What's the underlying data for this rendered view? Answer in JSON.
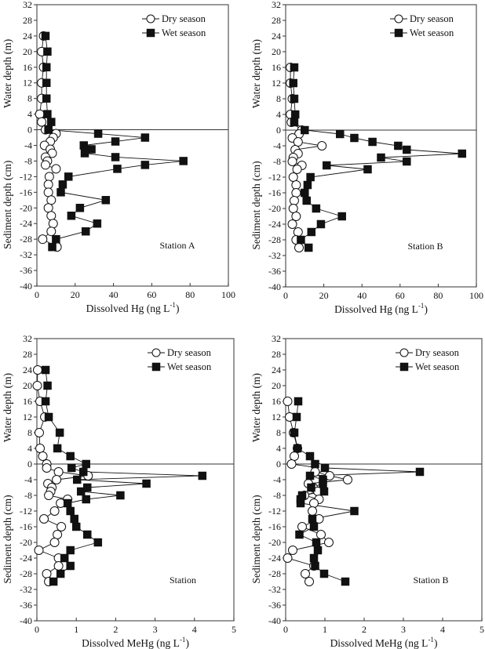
{
  "chart_data": [
    {
      "type": "line",
      "panel": "top-left",
      "title": "",
      "annotation": "Station A",
      "xlabel": "Dissolved Hg (ng L",
      "xlabel_sup": "-1",
      "xlabel_close": ")",
      "ylabel_upper": "Water depth (m)",
      "ylabel_lower": "Sediment depth (cm)",
      "xlim": [
        0,
        100
      ],
      "ylim": [
        -40,
        32
      ],
      "xticks": [
        0,
        20,
        40,
        60,
        80,
        100
      ],
      "yticks": [
        32,
        28,
        24,
        20,
        16,
        12,
        8,
        4,
        0,
        -4,
        -8,
        -12,
        -16,
        -20,
        -24,
        -28,
        -32,
        -36,
        -40
      ],
      "legend": {
        "position": "top-right",
        "entries": [
          "Dry season",
          "Wet season"
        ]
      },
      "series": [
        {
          "name": "Dry season",
          "marker": "open-circle",
          "points": [
            [
              3.5,
              24
            ],
            [
              2.5,
              20
            ],
            [
              3.5,
              16
            ],
            [
              2.5,
              12
            ],
            [
              2.5,
              8
            ],
            [
              1.5,
              4
            ],
            [
              2.5,
              2
            ],
            [
              4.5,
              0
            ],
            [
              10,
              -1
            ],
            [
              8.5,
              -2
            ],
            [
              7,
              -3
            ],
            [
              4,
              -4
            ],
            [
              7,
              -5
            ],
            [
              8,
              -6
            ],
            [
              4.5,
              -7
            ],
            [
              5.5,
              -8
            ],
            [
              4.5,
              -9
            ],
            [
              10,
              -10
            ],
            [
              6.5,
              -12
            ],
            [
              6,
              -14
            ],
            [
              6,
              -16
            ],
            [
              7.5,
              -18
            ],
            [
              6,
              -20
            ],
            [
              7.5,
              -22
            ],
            [
              8.5,
              -24
            ],
            [
              7.5,
              -26
            ],
            [
              3,
              -28
            ],
            [
              10.5,
              -30
            ]
          ]
        },
        {
          "name": "Wet season",
          "marker": "filled-square",
          "points": [
            [
              4.5,
              24
            ],
            [
              5.5,
              20
            ],
            [
              5,
              16
            ],
            [
              5,
              12
            ],
            [
              5,
              8
            ],
            [
              5.5,
              4
            ],
            [
              7.5,
              2
            ],
            [
              6,
              0
            ],
            [
              32,
              -1
            ],
            [
              56.5,
              -2
            ],
            [
              41,
              -3
            ],
            [
              24.5,
              -4
            ],
            [
              28.5,
              -5
            ],
            [
              25,
              -6
            ],
            [
              41,
              -7
            ],
            [
              76.5,
              -8
            ],
            [
              56.5,
              -9
            ],
            [
              42,
              -10
            ],
            [
              16.5,
              -12
            ],
            [
              13.5,
              -14
            ],
            [
              12.5,
              -16
            ],
            [
              36,
              -18
            ],
            [
              22.5,
              -20
            ],
            [
              18,
              -22
            ],
            [
              31.5,
              -24
            ],
            [
              25.5,
              -26
            ],
            [
              10,
              -28
            ],
            [
              8,
              -30
            ]
          ]
        }
      ]
    },
    {
      "type": "line",
      "panel": "top-right",
      "title": "",
      "annotation": "Station B",
      "xlabel": "Dissolved Hg (ng L",
      "xlabel_sup": "-1",
      "xlabel_close": ")",
      "ylabel_upper": "Water depth (m)",
      "ylabel_lower": "Sediment depth (cm)",
      "xlim": [
        0,
        100
      ],
      "ylim": [
        -40,
        32
      ],
      "xticks": [
        0,
        20,
        40,
        60,
        80,
        100
      ],
      "yticks": [
        32,
        28,
        24,
        20,
        16,
        12,
        8,
        4,
        0,
        -4,
        -8,
        -12,
        -16,
        -20,
        -24,
        -28,
        -32,
        -36,
        -40
      ],
      "legend": {
        "position": "top-right",
        "entries": [
          "Dry season",
          "Wet season"
        ]
      },
      "series": [
        {
          "name": "Dry season",
          "marker": "open-circle",
          "points": [
            [
              2.5,
              16
            ],
            [
              2.5,
              12
            ],
            [
              3.5,
              8
            ],
            [
              2.5,
              4
            ],
            [
              3,
              2
            ],
            [
              8.5,
              0
            ],
            [
              7,
              -1
            ],
            [
              3.5,
              -2
            ],
            [
              6.5,
              -3
            ],
            [
              19,
              -4
            ],
            [
              5,
              -5
            ],
            [
              6.5,
              -6
            ],
            [
              4,
              -7
            ],
            [
              3.5,
              -8
            ],
            [
              8.5,
              -9
            ],
            [
              6,
              -10
            ],
            [
              4,
              -12
            ],
            [
              5.5,
              -14
            ],
            [
              5.5,
              -16
            ],
            [
              4.5,
              -18
            ],
            [
              4,
              -20
            ],
            [
              5.5,
              -22
            ],
            [
              3.5,
              -24
            ],
            [
              6.5,
              -26
            ],
            [
              5.5,
              -28
            ],
            [
              7,
              -30
            ]
          ]
        },
        {
          "name": "Wet season",
          "marker": "filled-square",
          "points": [
            [
              4.5,
              16
            ],
            [
              4,
              12
            ],
            [
              4.5,
              8
            ],
            [
              5,
              4
            ],
            [
              4.5,
              2
            ],
            [
              10,
              0
            ],
            [
              28.5,
              -1
            ],
            [
              36,
              -2
            ],
            [
              45.5,
              -3
            ],
            [
              59,
              -4
            ],
            [
              63.5,
              -5
            ],
            [
              92.5,
              -6
            ],
            [
              50,
              -7
            ],
            [
              63.5,
              -8
            ],
            [
              21.5,
              -9
            ],
            [
              43,
              -10
            ],
            [
              13,
              -12
            ],
            [
              11.5,
              -14
            ],
            [
              10,
              -16
            ],
            [
              11,
              -18
            ],
            [
              16,
              -20
            ],
            [
              29.5,
              -22
            ],
            [
              18.5,
              -24
            ],
            [
              13.5,
              -26
            ],
            [
              8,
              -28
            ],
            [
              12,
              -30
            ]
          ]
        }
      ]
    },
    {
      "type": "line",
      "panel": "bottom-left",
      "title": "",
      "annotation": "Station",
      "xlabel": "Dissolved MeHg (ng L",
      "xlabel_sup": "-1",
      "xlabel_close": ")",
      "ylabel_upper": "Water depth (m)",
      "ylabel_lower": "Sediment depth (cm)",
      "xlim": [
        0,
        5
      ],
      "ylim": [
        -40,
        32
      ],
      "xticks": [
        0,
        1,
        2,
        3,
        4,
        5
      ],
      "yticks": [
        32,
        28,
        24,
        20,
        16,
        12,
        8,
        4,
        0,
        -4,
        -8,
        -12,
        -16,
        -20,
        -24,
        -28,
        -32,
        -36,
        -40
      ],
      "legend": {
        "position": "top-right",
        "entries": [
          "Dry season",
          "Wet season"
        ]
      },
      "series": [
        {
          "name": "Dry season",
          "marker": "open-circle",
          "points": [
            [
              0.02,
              24
            ],
            [
              0.01,
              20
            ],
            [
              0.08,
              16
            ],
            [
              0.2,
              12
            ],
            [
              0.06,
              8
            ],
            [
              0.08,
              4
            ],
            [
              0.15,
              2
            ],
            [
              0.25,
              0
            ],
            [
              0.25,
              -1
            ],
            [
              0.55,
              -2
            ],
            [
              1.3,
              -3
            ],
            [
              0.5,
              -4
            ],
            [
              0.28,
              -5
            ],
            [
              0.38,
              -6
            ],
            [
              0.35,
              -7
            ],
            [
              0.3,
              -8
            ],
            [
              0.78,
              -9
            ],
            [
              0.6,
              -10
            ],
            [
              0.45,
              -12
            ],
            [
              0.18,
              -14
            ],
            [
              0.62,
              -16
            ],
            [
              0.52,
              -18
            ],
            [
              0.45,
              -20
            ],
            [
              0.05,
              -22
            ],
            [
              0.55,
              -24
            ],
            [
              0.55,
              -26
            ],
            [
              0.25,
              -28
            ],
            [
              0.3,
              -30
            ]
          ]
        },
        {
          "name": "Wet season",
          "marker": "filled-square",
          "points": [
            [
              0.22,
              24
            ],
            [
              0.27,
              20
            ],
            [
              0.22,
              16
            ],
            [
              0.3,
              12
            ],
            [
              0.58,
              8
            ],
            [
              0.52,
              4
            ],
            [
              0.85,
              2
            ],
            [
              1.25,
              0
            ],
            [
              0.88,
              -1
            ],
            [
              1.18,
              -2
            ],
            [
              4.2,
              -3
            ],
            [
              1.02,
              -4
            ],
            [
              2.78,
              -5
            ],
            [
              1.28,
              -6
            ],
            [
              1.12,
              -7
            ],
            [
              2.12,
              -8
            ],
            [
              1.25,
              -9
            ],
            [
              0.78,
              -10
            ],
            [
              0.85,
              -12
            ],
            [
              0.95,
              -14
            ],
            [
              1.0,
              -16
            ],
            [
              1.28,
              -18
            ],
            [
              1.55,
              -20
            ],
            [
              0.85,
              -22
            ],
            [
              0.7,
              -24
            ],
            [
              0.85,
              -26
            ],
            [
              0.6,
              -28
            ],
            [
              0.42,
              -30
            ]
          ]
        }
      ]
    },
    {
      "type": "line",
      "panel": "bottom-right",
      "title": "",
      "annotation": "Station B",
      "xlabel": "Dissolved MeHg (ng L",
      "xlabel_sup": "-1",
      "xlabel_close": ")",
      "ylabel_upper": "Water depth (m)",
      "ylabel_lower": "Sediment depth (cm)",
      "xlim": [
        0,
        5
      ],
      "ylim": [
        -40,
        32
      ],
      "xticks": [
        0,
        1,
        2,
        3,
        4,
        5
      ],
      "yticks": [
        32,
        28,
        24,
        20,
        16,
        12,
        8,
        4,
        0,
        -4,
        -8,
        -12,
        -16,
        -20,
        -24,
        -28,
        -32,
        -36,
        -40
      ],
      "legend": {
        "position": "top-right",
        "entries": [
          "Dry season",
          "Wet season"
        ]
      },
      "series": [
        {
          "name": "Dry season",
          "marker": "open-circle",
          "points": [
            [
              0.05,
              16
            ],
            [
              0.1,
              12
            ],
            [
              0.2,
              8
            ],
            [
              0.3,
              4
            ],
            [
              0.22,
              2
            ],
            [
              0.15,
              0
            ],
            [
              0.85,
              -1
            ],
            [
              0.75,
              -2
            ],
            [
              1.12,
              -3
            ],
            [
              1.58,
              -4
            ],
            [
              0.58,
              -5
            ],
            [
              0.7,
              -6
            ],
            [
              0.82,
              -7
            ],
            [
              0.48,
              -8
            ],
            [
              0.85,
              -9
            ],
            [
              0.72,
              -10
            ],
            [
              0.68,
              -12
            ],
            [
              0.85,
              -14
            ],
            [
              0.42,
              -16
            ],
            [
              0.9,
              -18
            ],
            [
              1.1,
              -20
            ],
            [
              0.18,
              -22
            ],
            [
              0.05,
              -24
            ],
            [
              0.72,
              -26
            ],
            [
              0.5,
              -28
            ],
            [
              0.6,
              -30
            ]
          ]
        },
        {
          "name": "Wet season",
          "marker": "filled-square",
          "points": [
            [
              0.32,
              16
            ],
            [
              0.28,
              12
            ],
            [
              0.22,
              8
            ],
            [
              0.3,
              4
            ],
            [
              0.62,
              2
            ],
            [
              0.75,
              0
            ],
            [
              1.0,
              -1
            ],
            [
              3.42,
              -2
            ],
            [
              0.62,
              -3
            ],
            [
              0.95,
              -4
            ],
            [
              0.95,
              -5
            ],
            [
              0.65,
              -6
            ],
            [
              0.98,
              -7
            ],
            [
              0.42,
              -8
            ],
            [
              0.38,
              -9
            ],
            [
              0.38,
              -10
            ],
            [
              1.75,
              -12
            ],
            [
              0.68,
              -14
            ],
            [
              0.72,
              -16
            ],
            [
              0.35,
              -18
            ],
            [
              0.78,
              -20
            ],
            [
              0.82,
              -22
            ],
            [
              0.72,
              -24
            ],
            [
              0.75,
              -26
            ],
            [
              0.98,
              -28
            ],
            [
              1.52,
              -30
            ]
          ]
        }
      ]
    }
  ]
}
